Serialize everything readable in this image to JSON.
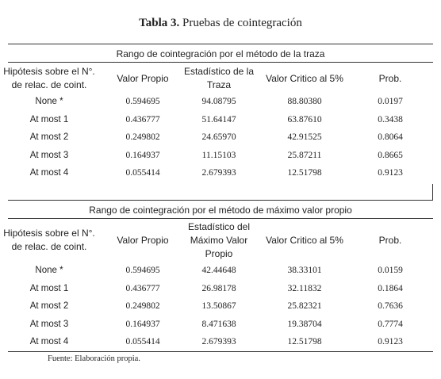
{
  "header": {
    "label": "Tabla 3.",
    "title": "Pruebas de cointegración"
  },
  "sections": [
    {
      "title": "Rango de cointegración por el método de la traza",
      "columns": [
        [
          "Hipótesis sobre el N°.",
          "de relac. de coint."
        ],
        [
          "Valor Propio"
        ],
        [
          "Estadístico de la",
          "Traza"
        ],
        [
          "Valor Critico al 5%"
        ],
        [
          "Prob."
        ]
      ],
      "rows": [
        [
          "None *",
          "0.594695",
          "94.08795",
          "88.80380",
          "0.0197"
        ],
        [
          "At most 1",
          "0.436777",
          "51.64147",
          "63.87610",
          "0.3438"
        ],
        [
          "At most 2",
          "0.249802",
          "24.65970",
          "42.91525",
          "0.8064"
        ],
        [
          "At most 3",
          "0.164937",
          "11.15103",
          "25.87211",
          "0.8665"
        ],
        [
          "At most 4",
          "0.055414",
          "2.679393",
          "12.51798",
          "0.9123"
        ]
      ]
    },
    {
      "title": "Rango de cointegración por el método de máximo valor propio",
      "columns": [
        [
          "Hipótesis sobre el N°.",
          "de relac. de coint."
        ],
        [
          "Valor Propio"
        ],
        [
          "Estadístico del",
          "Máximo Valor",
          "Propio"
        ],
        [
          "Valor Critico al 5%"
        ],
        [
          "Prob."
        ]
      ],
      "rows": [
        [
          "None *",
          "0.594695",
          "42.44648",
          "38.33101",
          "0.0159"
        ],
        [
          "At most 1",
          "0.436777",
          "26.98178",
          "32.11832",
          "0.1864"
        ],
        [
          "At most 2",
          "0.249802",
          "13.50867",
          "25.82321",
          "0.7636"
        ],
        [
          "At most 3",
          "0.164937",
          "8.471638",
          "19.38704",
          "0.7774"
        ],
        [
          "At most 4",
          "0.055414",
          "2.679393",
          "12.51798",
          "0.9123"
        ]
      ]
    }
  ],
  "footer": "Fuente: Elaboración propia."
}
